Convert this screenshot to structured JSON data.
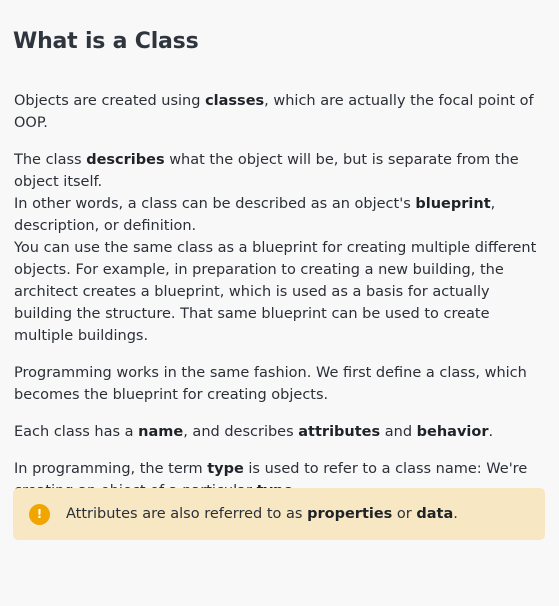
{
  "title": "What is a Class",
  "p1": {
    "t1": "Objects are created using ",
    "b1": "classes",
    "t2": ", which are actually the focal point of OOP."
  },
  "p2": {
    "t1": "The class ",
    "b1": "describes",
    "t2": " what the object will be, but is separate from the object itself.",
    "t3": "In other words, a class can be described as an object's ",
    "b2": "blueprint",
    "t4": ", description, or definition.",
    "t5": "You can use the same class as a blueprint for creating multiple different objects. For example, in preparation to creating a new building, the architect creates a blueprint, which is used as a basis for actually building the structure. That same blueprint can be used to create multiple buildings."
  },
  "p3": {
    "t1": "Programming works in the same fashion. We first define a class, which becomes the blueprint for creating objects."
  },
  "p4": {
    "t1": "Each class has a ",
    "b1": "name",
    "t2": ", and describes ",
    "b2": "attributes",
    "t3": " and ",
    "b3": "behavior",
    "t4": "."
  },
  "p5": {
    "t1": "In programming, the term ",
    "b1": "type",
    "t2": " is used to refer to a class name: We're creating an object of a particular ",
    "b2": "type",
    "t3": "."
  },
  "note": {
    "icon": "!",
    "icon_name": "warning-icon",
    "t1": "Attributes are also referred to as ",
    "b1": "properties",
    "t2": " or ",
    "b2": "data",
    "t3": ".",
    "bg_color": "#f7e8c3",
    "icon_color": "#f0a500"
  }
}
